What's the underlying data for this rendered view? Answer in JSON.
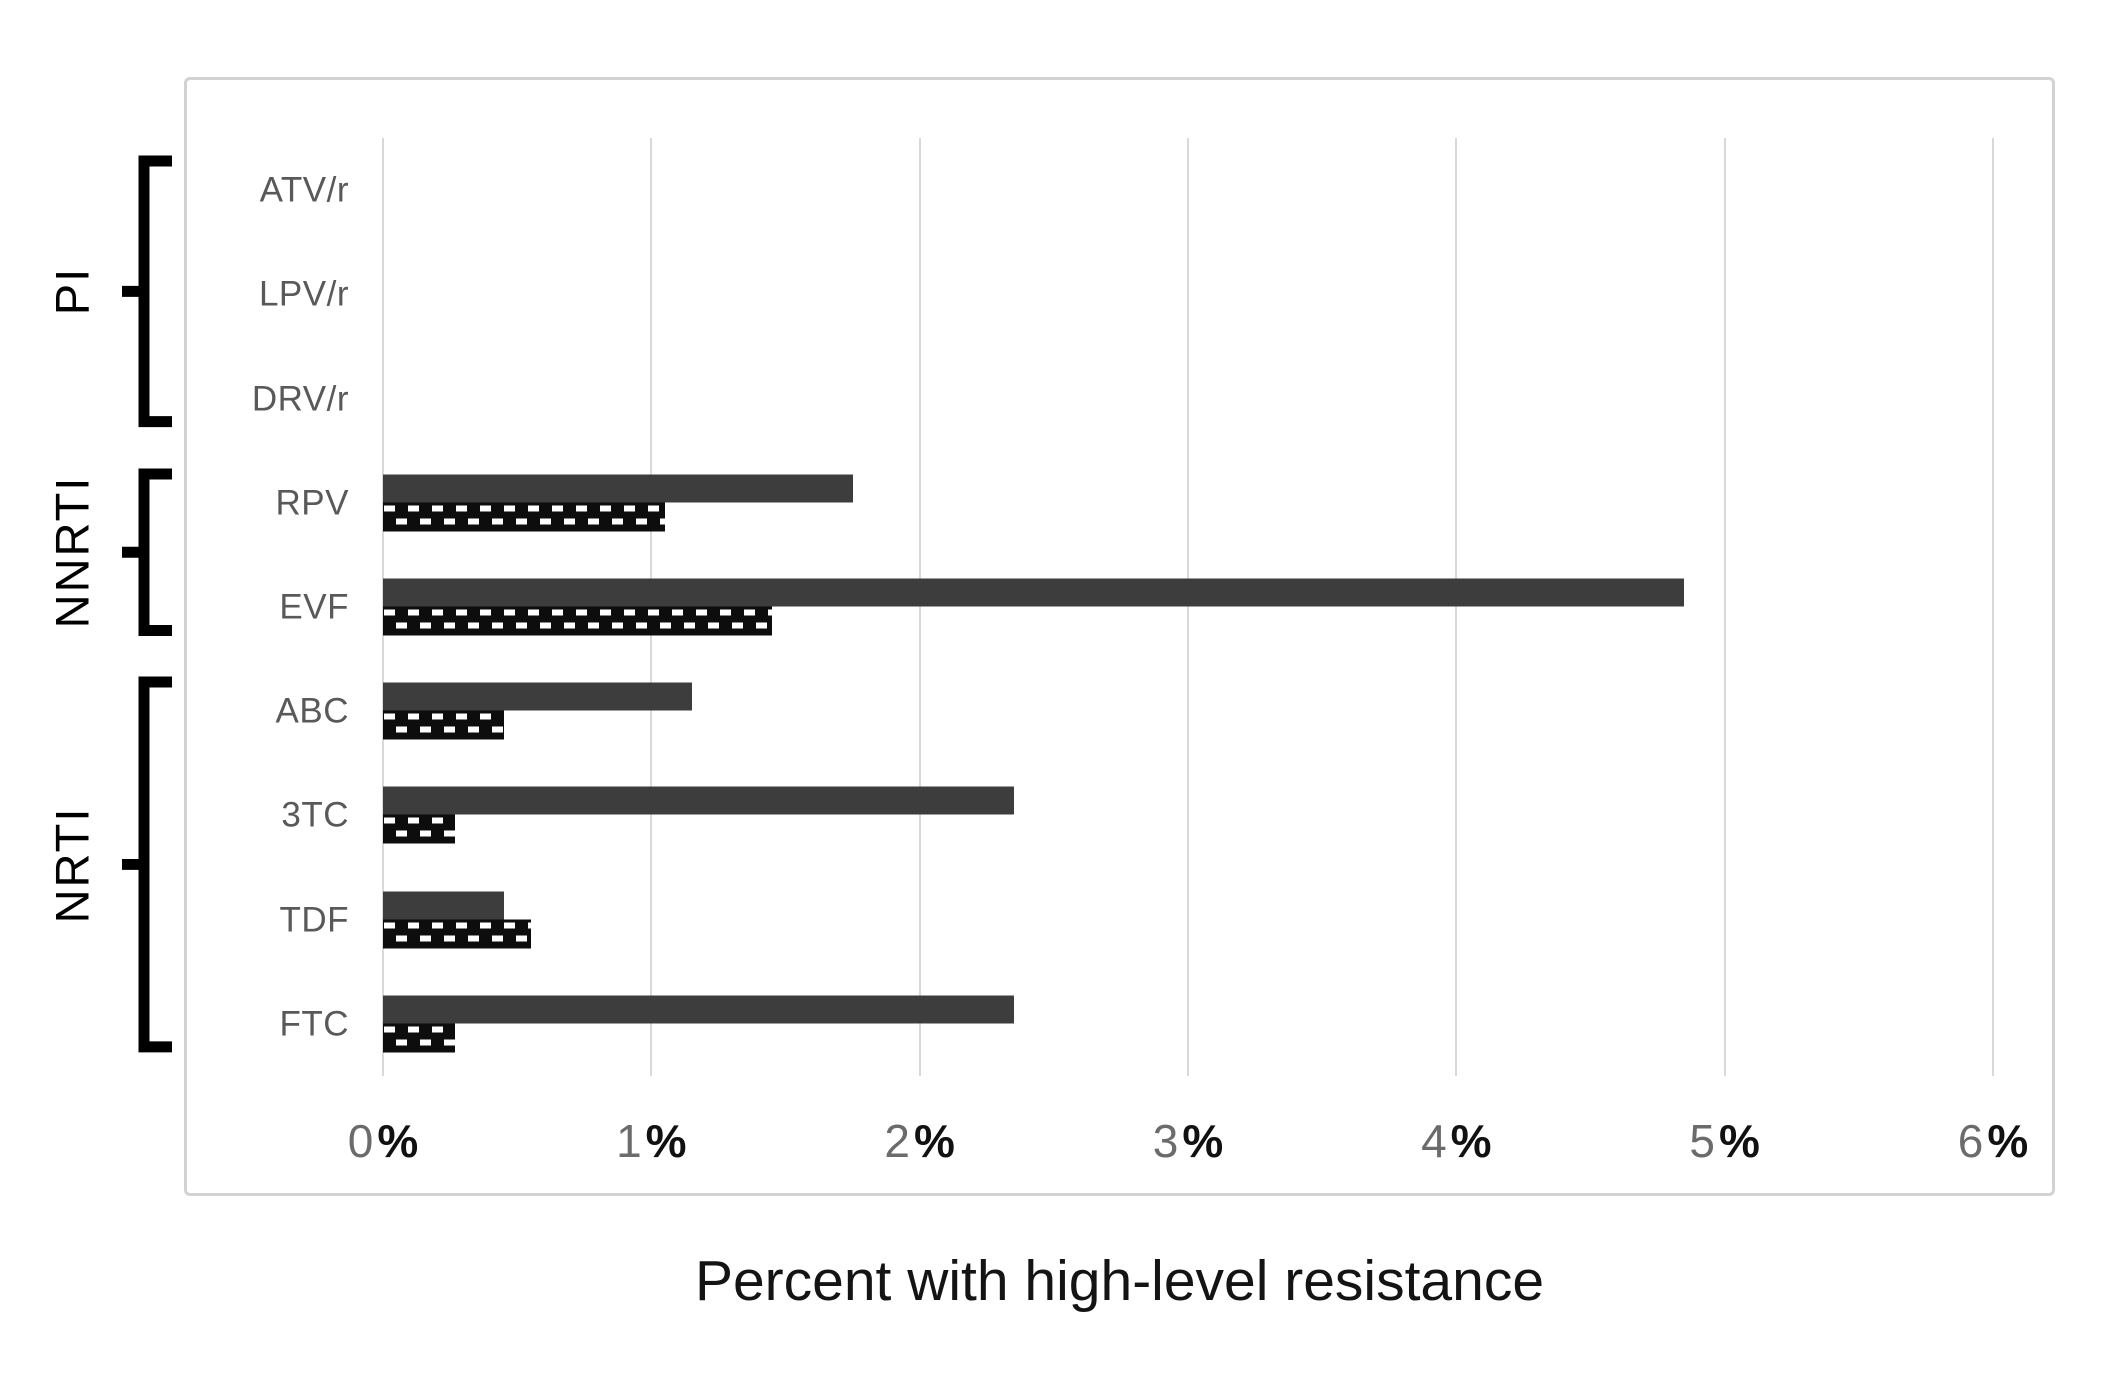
{
  "chart_data": {
    "type": "bar",
    "orientation": "horizontal",
    "axis_title": "Percent with high-level resistance",
    "x_tick_labels": [
      "0%",
      "1%",
      "2%",
      "3%",
      "4%",
      "5%",
      "6%"
    ],
    "xlim": [
      0,
      6
    ],
    "grid": true,
    "legend": "none visible",
    "categories": [
      "ATV/r",
      "LPV/r",
      "DRV/r",
      "RPV",
      "EVF",
      "ABC",
      "3TC",
      "TDF",
      "FTC"
    ],
    "groups": [
      {
        "label": "PI",
        "from": 0,
        "to": 2
      },
      {
        "label": "NNRTI",
        "from": 3,
        "to": 4
      },
      {
        "label": "NRTI",
        "from": 5,
        "to": 8
      }
    ],
    "series": [
      {
        "name": "solid",
        "style": "solid dark bar",
        "values": [
          0,
          0,
          0,
          1.75,
          4.85,
          1.15,
          2.35,
          0.45,
          2.35
        ]
      },
      {
        "name": "checkered",
        "style": "black bar with white dash pattern",
        "values": [
          0,
          0,
          0,
          1.05,
          1.45,
          0.45,
          0.27,
          0.55,
          0.27
        ]
      }
    ]
  },
  "colors": {
    "bar_solid": "#3d3d3d",
    "pattern_bg": "#0d0d0d",
    "pattern_dash": "#ffffff",
    "gridline": "#d9d9d9",
    "frame": "#d2d2d2",
    "category_label": "#595959",
    "tick_number": "#6b6b6b",
    "tick_percent": "#111111",
    "group_label": "#000000",
    "axis_title": "#141414"
  }
}
